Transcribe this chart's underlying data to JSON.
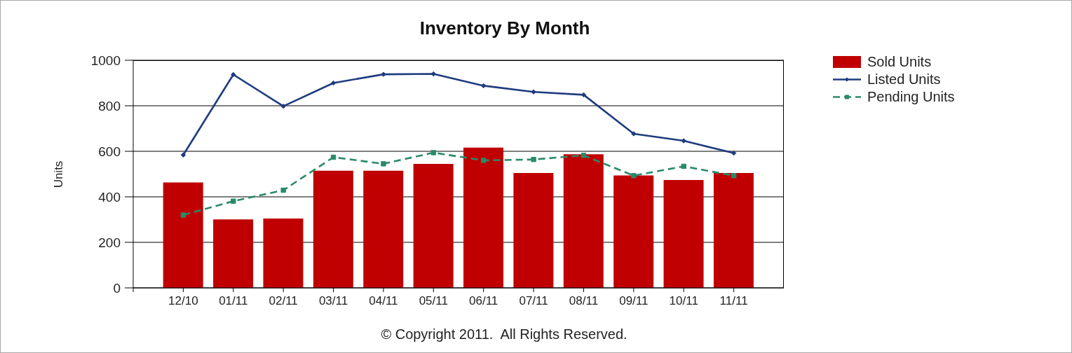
{
  "chart_data": {
    "type": "bar",
    "title": "Inventory By Month",
    "ylabel": "Units",
    "categories": [
      "12/10",
      "01/11",
      "02/11",
      "03/11",
      "04/11",
      "05/11",
      "06/11",
      "07/11",
      "08/11",
      "09/11",
      "10/11",
      "11/11"
    ],
    "series": [
      {
        "name": "Sold Units",
        "color": "#c00000",
        "values": [
          463,
          301,
          305,
          515,
          515,
          545,
          616,
          505,
          587,
          494,
          474,
          505
        ]
      },
      {
        "name": "Listed Units",
        "type": "line",
        "color": "#1f3c7f",
        "marker": "diamond",
        "values": [
          584,
          937,
          798,
          900,
          938,
          940,
          888,
          861,
          848,
          677,
          646,
          592
        ]
      },
      {
        "name": "Pending Units",
        "type": "line",
        "color": "#2a8a6a",
        "marker": "square",
        "line_style": "dashed",
        "values": [
          320,
          381,
          429,
          574,
          545,
          594,
          560,
          564,
          582,
          493,
          534,
          493
        ]
      }
    ],
    "ylim": [
      0,
      1000
    ],
    "yticks": [
      0,
      200,
      400,
      600,
      800,
      1000
    ],
    "grid": "y",
    "legend": "top right",
    "annotations": [
      "© Copyright 2011.  All Rights Reserved."
    ]
  }
}
